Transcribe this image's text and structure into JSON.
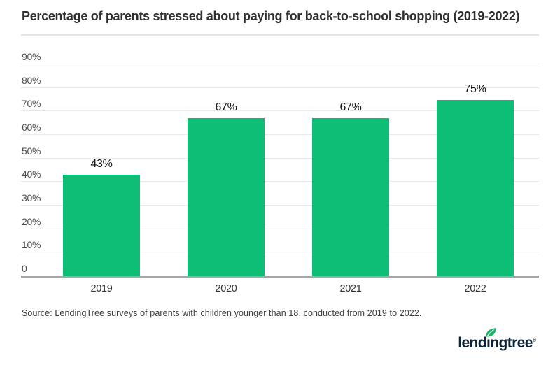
{
  "chart_data": {
    "type": "bar",
    "title": "Percentage of parents stressed about paying for back-to-school shopping (2019-2022)",
    "categories": [
      "2019",
      "2020",
      "2021",
      "2022"
    ],
    "values": [
      43,
      67,
      67,
      75
    ],
    "data_labels": [
      "43%",
      "67%",
      "67%",
      "75%"
    ],
    "ytick_values": [
      0,
      10,
      20,
      30,
      40,
      50,
      60,
      70,
      80,
      90
    ],
    "ytick_labels": [
      "0",
      "10%",
      "20%",
      "30%",
      "40%",
      "50%",
      "60%",
      "70%",
      "80%",
      "90%"
    ],
    "ylim": [
      0,
      100
    ],
    "xlabel": "",
    "ylabel": "",
    "grid": true,
    "legend": false,
    "bar_color": "#0fbe76",
    "gridline_color": "#eaeaea",
    "axis_line_color": "#a6a6a6"
  },
  "source": {
    "note": "Source: LendingTree surveys of parents with children younger than 18, conducted from 2019 to 2022."
  },
  "brand": {
    "wordmark_pre": "lend",
    "wordmark_i": "ı",
    "wordmark_post": "ngtree",
    "registered": "®",
    "leaf_icon": "leaf-icon",
    "navy": "#0b2336",
    "leaf_green": "#1db56e"
  }
}
